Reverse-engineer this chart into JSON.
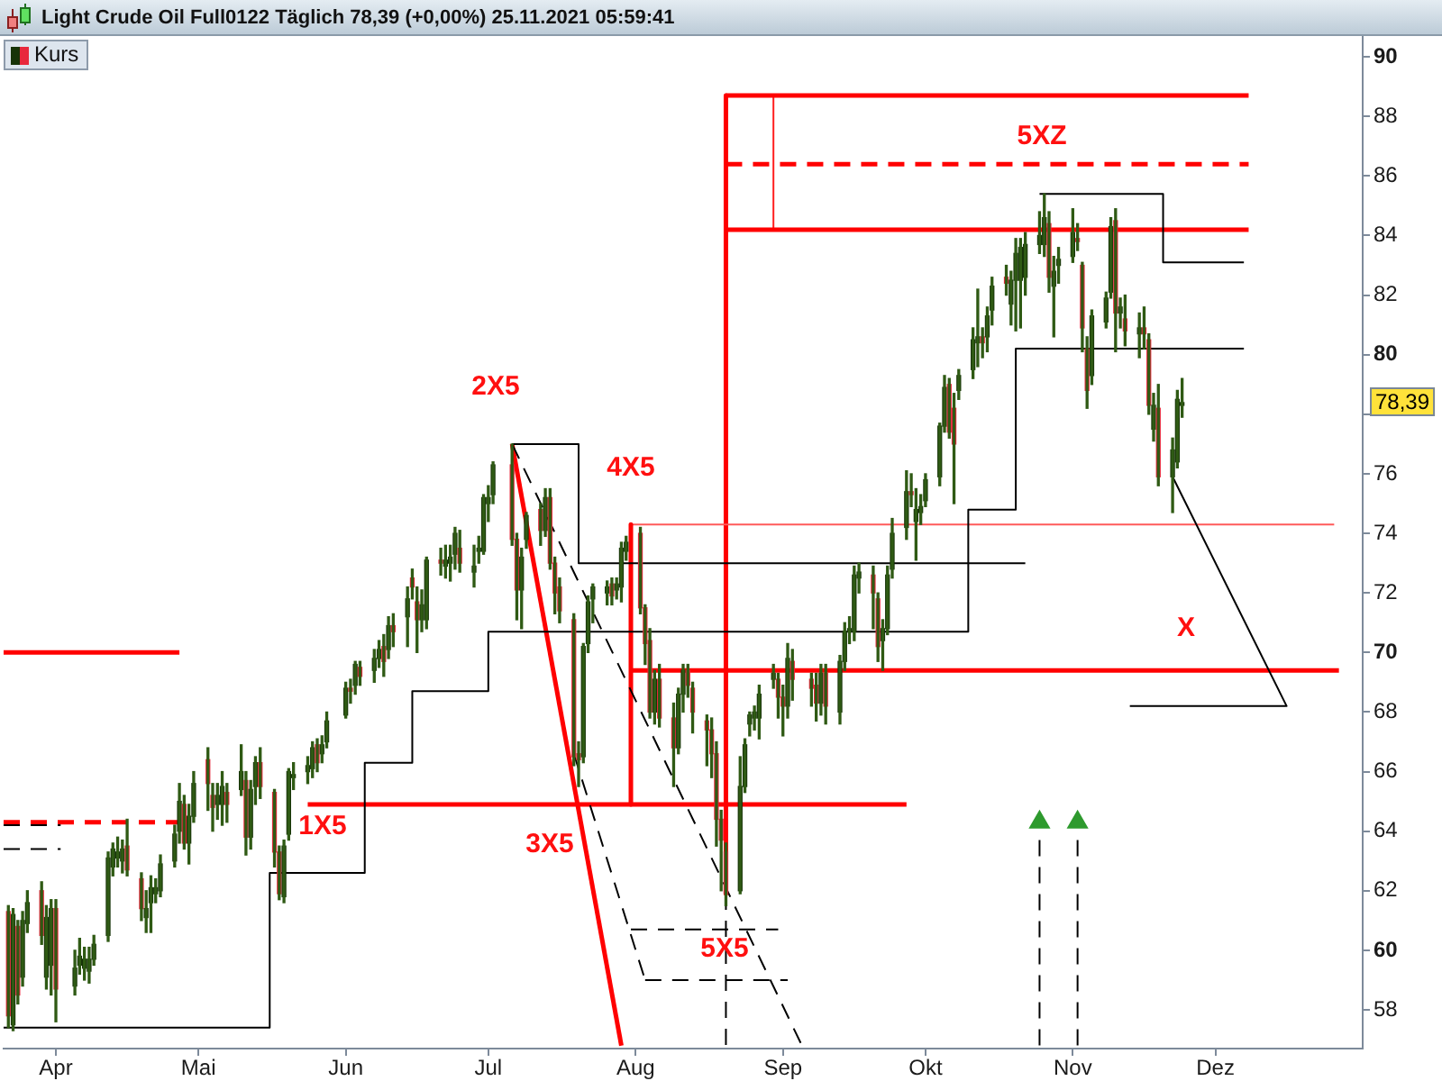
{
  "chart_data": {
    "type": "candlestick",
    "title": "Light Crude Oil Full0122 Täglich 78,39 (+0,00%) 25.11.2021 05:59:41",
    "legend": "top left",
    "xlim": [
      "2021-03-21",
      "2022-01-01"
    ],
    "xticks": [
      {
        "value": "2021-04-01",
        "label": "Apr"
      },
      {
        "value": "2021-05-01",
        "label": "Mai"
      },
      {
        "value": "2021-06-01",
        "label": "Jun"
      },
      {
        "value": "2021-07-01",
        "label": "Jul"
      },
      {
        "value": "2021-08-01",
        "label": "Aug"
      },
      {
        "value": "2021-09-01",
        "label": "Sep"
      },
      {
        "value": "2021-10-01",
        "label": "Okt"
      },
      {
        "value": "2021-11-01",
        "label": "Nov"
      },
      {
        "value": "2021-12-01",
        "label": "Dez"
      }
    ],
    "ylim": [
      56.7,
      90.7
    ],
    "yticks": [
      58,
      60,
      62,
      64,
      66,
      68,
      70,
      72,
      74,
      76,
      {
        "value": 78,
        "label": null
      },
      80,
      82,
      84,
      86,
      88,
      90
    ],
    "annotations": [
      "2X5",
      "4X5",
      "1X5",
      "3X5",
      "5X5",
      "5XZ",
      "X",
      "78,39"
    ],
    "series": [
      {
        "name": "Kurs",
        "color": "#2f5a14",
        "x": [
          "2021-03-22",
          "2021-03-23",
          "2021-03-24",
          "2021-03-25",
          "2021-03-26",
          "2021-03-29",
          "2021-03-30",
          "2021-03-31",
          "2021-04-01",
          "2021-04-05",
          "2021-04-06",
          "2021-04-07",
          "2021-04-08",
          "2021-04-09",
          "2021-04-12",
          "2021-04-13",
          "2021-04-14",
          "2021-04-15",
          "2021-04-16",
          "2021-04-19",
          "2021-04-20",
          "2021-04-21",
          "2021-04-22",
          "2021-04-23",
          "2021-04-26",
          "2021-04-27",
          "2021-04-28",
          "2021-04-29",
          "2021-04-30",
          "2021-05-03",
          "2021-05-04",
          "2021-05-05",
          "2021-05-06",
          "2021-05-07",
          "2021-05-10",
          "2021-05-11",
          "2021-05-12",
          "2021-05-13",
          "2021-05-14",
          "2021-05-17",
          "2021-05-18",
          "2021-05-19",
          "2021-05-20",
          "2021-05-21",
          "2021-05-24",
          "2021-05-25",
          "2021-05-26",
          "2021-05-27",
          "2021-05-28",
          "2021-06-01",
          "2021-06-02",
          "2021-06-03",
          "2021-06-04",
          "2021-06-07",
          "2021-06-08",
          "2021-06-09",
          "2021-06-10",
          "2021-06-11",
          "2021-06-14",
          "2021-06-15",
          "2021-06-16",
          "2021-06-17",
          "2021-06-18",
          "2021-06-21",
          "2021-06-22",
          "2021-06-23",
          "2021-06-24",
          "2021-06-25",
          "2021-06-28",
          "2021-06-29",
          "2021-06-30",
          "2021-07-01",
          "2021-07-02",
          "2021-07-06",
          "2021-07-07",
          "2021-07-08",
          "2021-07-09",
          "2021-07-12",
          "2021-07-13",
          "2021-07-14",
          "2021-07-15",
          "2021-07-16",
          "2021-07-19",
          "2021-07-20",
          "2021-07-21",
          "2021-07-22",
          "2021-07-23",
          "2021-07-26",
          "2021-07-27",
          "2021-07-28",
          "2021-07-29",
          "2021-07-30",
          "2021-08-02",
          "2021-08-03",
          "2021-08-04",
          "2021-08-05",
          "2021-08-06",
          "2021-08-09",
          "2021-08-10",
          "2021-08-11",
          "2021-08-12",
          "2021-08-13",
          "2021-08-16",
          "2021-08-17",
          "2021-08-18",
          "2021-08-19",
          "2021-08-20",
          "2021-08-23",
          "2021-08-24",
          "2021-08-25",
          "2021-08-26",
          "2021-08-27",
          "2021-08-30",
          "2021-08-31",
          "2021-09-01",
          "2021-09-02",
          "2021-09-03",
          "2021-09-07",
          "2021-09-08",
          "2021-09-09",
          "2021-09-10",
          "2021-09-13",
          "2021-09-14",
          "2021-09-15",
          "2021-09-16",
          "2021-09-17",
          "2021-09-20",
          "2021-09-21",
          "2021-09-22",
          "2021-09-23",
          "2021-09-24",
          "2021-09-27",
          "2021-09-28",
          "2021-09-29",
          "2021-09-30",
          "2021-10-01",
          "2021-10-04",
          "2021-10-05",
          "2021-10-06",
          "2021-10-07",
          "2021-10-08",
          "2021-10-11",
          "2021-10-12",
          "2021-10-13",
          "2021-10-14",
          "2021-10-15",
          "2021-10-18",
          "2021-10-19",
          "2021-10-20",
          "2021-10-21",
          "2021-10-22",
          "2021-10-25",
          "2021-10-26",
          "2021-10-27",
          "2021-10-28",
          "2021-10-29",
          "2021-11-01",
          "2021-11-02",
          "2021-11-03",
          "2021-11-04",
          "2021-11-05",
          "2021-11-08",
          "2021-11-09",
          "2021-11-10",
          "2021-11-11",
          "2021-11-12",
          "2021-11-15",
          "2021-11-16",
          "2021-11-17",
          "2021-11-18",
          "2021-11-19",
          "2021-11-22",
          "2021-11-23",
          "2021-11-24"
        ],
        "ohlc": [
          [
            61.3,
            61.5,
            57.4,
            57.8
          ],
          [
            57.5,
            61.4,
            57.3,
            61.2
          ],
          [
            60.8,
            61.0,
            58.2,
            58.5
          ],
          [
            59.1,
            61.3,
            58.8,
            61.0
          ],
          [
            60.9,
            62.0,
            60.6,
            61.6
          ],
          [
            62.0,
            62.3,
            60.2,
            60.5
          ],
          [
            59.1,
            61.5,
            58.7,
            61.1
          ],
          [
            59.5,
            61.7,
            58.5,
            61.4
          ],
          [
            61.4,
            61.7,
            57.6,
            58.7
          ],
          [
            58.8,
            60.0,
            58.5,
            59.4
          ],
          [
            59.5,
            60.4,
            59.2,
            59.8
          ],
          [
            59.4,
            60.1,
            59.0,
            59.7
          ],
          [
            59.3,
            60.1,
            58.9,
            59.7
          ],
          [
            59.7,
            60.5,
            59.5,
            60.2
          ],
          [
            60.5,
            63.3,
            60.3,
            63.1
          ],
          [
            62.8,
            63.6,
            62.5,
            63.4
          ],
          [
            63.1,
            63.8,
            62.8,
            63.3
          ],
          [
            63.0,
            63.7,
            62.6,
            63.4
          ],
          [
            63.5,
            64.4,
            62.5,
            62.7
          ],
          [
            62.4,
            62.6,
            61.0,
            61.4
          ],
          [
            61.1,
            62.0,
            60.6,
            61.4
          ],
          [
            61.6,
            62.5,
            60.6,
            62.1
          ],
          [
            61.9,
            62.4,
            61.6,
            62.1
          ],
          [
            62.0,
            63.2,
            61.8,
            62.9
          ],
          [
            63.0,
            64.2,
            62.8,
            63.9
          ],
          [
            64.0,
            65.6,
            63.6,
            65.0
          ],
          [
            64.9,
            65.2,
            63.4,
            63.6
          ],
          [
            63.6,
            64.9,
            62.9,
            64.5
          ],
          [
            64.5,
            66.0,
            64.3,
            65.6
          ],
          [
            66.4,
            66.8,
            64.7,
            65.6
          ],
          [
            65.2,
            65.6,
            64.0,
            64.8
          ],
          [
            64.9,
            65.6,
            64.4,
            65.2
          ],
          [
            64.9,
            66.0,
            64.2,
            65.5
          ],
          [
            65.3,
            65.6,
            64.3,
            64.9
          ],
          [
            65.4,
            66.9,
            65.2,
            66.0
          ],
          [
            65.7,
            66.0,
            63.2,
            63.8
          ],
          [
            63.8,
            65.7,
            63.4,
            65.4
          ],
          [
            65.5,
            66.5,
            64.9,
            66.3
          ],
          [
            66.3,
            66.8,
            65.1,
            65.5
          ],
          [
            65.3,
            65.4,
            62.8,
            63.3
          ],
          [
            63.3,
            63.5,
            61.7,
            61.9
          ],
          [
            61.8,
            63.7,
            61.6,
            63.5
          ],
          [
            63.9,
            66.1,
            63.7,
            66.0
          ],
          [
            65.8,
            66.3,
            65.4,
            65.9
          ],
          [
            66.0,
            66.5,
            65.6,
            66.2
          ],
          [
            66.1,
            67.0,
            65.8,
            66.8
          ],
          [
            66.9,
            67.1,
            66.0,
            66.3
          ],
          [
            66.6,
            67.2,
            66.3,
            66.9
          ],
          [
            67.0,
            68.0,
            66.8,
            67.7
          ],
          [
            67.9,
            69.0,
            67.8,
            68.8
          ],
          [
            68.8,
            69.1,
            68.3,
            68.7
          ],
          [
            68.9,
            69.7,
            68.6,
            69.6
          ],
          [
            69.5,
            69.7,
            68.9,
            69.2
          ],
          [
            69.4,
            70.1,
            69.0,
            69.8
          ],
          [
            69.8,
            70.4,
            69.5,
            70.1
          ],
          [
            70.2,
            70.6,
            69.2,
            69.7
          ],
          [
            70.1,
            71.2,
            69.8,
            70.9
          ],
          [
            70.9,
            71.3,
            70.2,
            70.7
          ],
          [
            71.2,
            72.2,
            70.2,
            71.8
          ],
          [
            72.5,
            72.8,
            71.8,
            72.2
          ],
          [
            71.7,
            72.2,
            70.0,
            71.1
          ],
          [
            71.1,
            72.1,
            70.7,
            71.6
          ],
          [
            71.1,
            73.2,
            70.8,
            73.1
          ],
          [
            73.1,
            73.5,
            72.6,
            73.0
          ],
          [
            72.9,
            73.6,
            72.5,
            73.1
          ],
          [
            73.0,
            73.6,
            72.4,
            73.2
          ],
          [
            73.3,
            74.2,
            72.8,
            74.0
          ],
          [
            73.5,
            74.1,
            72.7,
            73.0
          ],
          [
            72.7,
            73.6,
            72.2,
            72.9
          ],
          [
            73.4,
            73.9,
            73.0,
            73.5
          ],
          [
            73.4,
            75.3,
            73.3,
            75.2
          ],
          [
            75.0,
            75.6,
            74.4,
            75.2
          ],
          [
            75.3,
            76.4,
            75.0,
            76.3
          ],
          [
            76.3,
            77.0,
            73.6,
            73.8
          ],
          [
            73.8,
            74.0,
            71.1,
            72.1
          ],
          [
            72.1,
            73.5,
            70.8,
            73.2
          ],
          [
            73.8,
            74.7,
            73.5,
            74.6
          ],
          [
            74.8,
            75.0,
            73.6,
            74.1
          ],
          [
            74.1,
            75.5,
            73.9,
            75.2
          ],
          [
            75.2,
            75.5,
            72.8,
            73.0
          ],
          [
            73.0,
            73.2,
            71.3,
            72.0
          ],
          [
            72.2,
            72.5,
            71.0,
            71.4
          ],
          [
            71.1,
            71.3,
            66.2,
            66.5
          ],
          [
            66.6,
            67.0,
            65.5,
            66.4
          ],
          [
            66.5,
            70.3,
            66.3,
            70.2
          ],
          [
            70.3,
            71.9,
            70.0,
            71.7
          ],
          [
            71.8,
            72.3,
            71.0,
            72.2
          ],
          [
            72.0,
            72.4,
            71.6,
            72.2
          ],
          [
            72.3,
            72.5,
            71.6,
            71.9
          ],
          [
            72.1,
            72.5,
            71.8,
            72.3
          ],
          [
            72.2,
            73.7,
            71.7,
            73.5
          ],
          [
            73.4,
            73.9,
            73.1,
            73.7
          ],
          [
            74.0,
            74.2,
            71.3,
            71.5
          ],
          [
            71.5,
            71.6,
            69.6,
            70.3
          ],
          [
            70.4,
            70.8,
            67.8,
            68.0
          ],
          [
            68.0,
            69.4,
            67.6,
            69.1
          ],
          [
            69.1,
            69.6,
            67.5,
            67.8
          ],
          [
            67.8,
            68.3,
            65.5,
            66.8
          ],
          [
            66.8,
            68.8,
            66.6,
            68.6
          ],
          [
            68.6,
            69.6,
            68.0,
            69.4
          ],
          [
            69.4,
            69.6,
            68.5,
            68.9
          ],
          [
            68.8,
            69.0,
            67.3,
            68.0
          ],
          [
            67.7,
            67.9,
            66.2,
            67.4
          ],
          [
            67.4,
            67.8,
            65.8,
            66.6
          ],
          [
            66.6,
            67.0,
            63.5,
            64.4
          ],
          [
            64.4,
            64.7,
            62.0,
            63.7
          ],
          [
            63.3,
            63.6,
            61.5,
            61.9
          ],
          [
            62.0,
            66.5,
            61.9,
            65.5
          ],
          [
            65.5,
            67.1,
            65.3,
            66.9
          ],
          [
            67.6,
            68.0,
            67.2,
            67.9
          ],
          [
            67.8,
            68.2,
            67.4,
            68.0
          ],
          [
            67.8,
            68.9,
            67.1,
            68.6
          ],
          [
            69.1,
            69.6,
            68.8,
            69.3
          ],
          [
            69.1,
            69.3,
            67.8,
            68.5
          ],
          [
            68.5,
            68.9,
            67.2,
            68.2
          ],
          [
            68.2,
            70.3,
            67.8,
            69.8
          ],
          [
            69.7,
            70.1,
            68.4,
            69.1
          ],
          [
            69.1,
            69.3,
            68.2,
            68.8
          ],
          [
            68.9,
            69.3,
            67.7,
            68.3
          ],
          [
            68.3,
            69.6,
            67.9,
            69.3
          ],
          [
            69.3,
            69.6,
            67.6,
            68.2
          ],
          [
            68.0,
            69.9,
            67.6,
            69.7
          ],
          [
            69.7,
            71.0,
            69.4,
            70.7
          ],
          [
            70.7,
            71.2,
            70.3,
            70.8
          ],
          [
            70.7,
            72.9,
            70.4,
            72.6
          ],
          [
            72.5,
            73.0,
            72.0,
            72.7
          ],
          [
            72.6,
            72.9,
            70.8,
            72.0
          ],
          [
            71.8,
            72.0,
            69.7,
            70.2
          ],
          [
            70.4,
            71.1,
            69.4,
            70.8
          ],
          [
            70.8,
            72.9,
            70.6,
            72.6
          ],
          [
            72.8,
            74.5,
            72.5,
            74.0
          ],
          [
            74.2,
            76.1,
            73.8,
            75.4
          ],
          [
            75.4,
            76.0,
            74.9,
            75.3
          ],
          [
            74.4,
            75.5,
            73.1,
            74.8
          ],
          [
            74.7,
            75.3,
            74.3,
            74.9
          ],
          [
            75.1,
            76.0,
            74.9,
            75.8
          ],
          [
            75.9,
            77.7,
            75.6,
            77.6
          ],
          [
            77.6,
            79.3,
            77.4,
            78.9
          ],
          [
            79.0,
            79.2,
            77.2,
            77.4
          ],
          [
            78.2,
            78.7,
            75.0,
            77.0
          ],
          [
            78.8,
            79.5,
            78.5,
            79.3
          ],
          [
            79.5,
            80.9,
            79.2,
            80.5
          ],
          [
            80.4,
            82.2,
            79.6,
            80.6
          ],
          [
            80.6,
            80.9,
            79.9,
            80.4
          ],
          [
            80.6,
            81.6,
            80.1,
            81.3
          ],
          [
            81.5,
            82.6,
            81.0,
            82.3
          ],
          [
            82.6,
            83.0,
            82.0,
            82.4
          ],
          [
            81.7,
            82.8,
            81.0,
            82.5
          ],
          [
            82.5,
            83.9,
            80.8,
            83.4
          ],
          [
            82.5,
            83.9,
            80.9,
            83.6
          ],
          [
            82.6,
            84.1,
            82.0,
            83.7
          ],
          [
            83.7,
            84.8,
            83.4,
            84.0
          ],
          [
            83.7,
            85.4,
            83.3,
            84.6
          ],
          [
            84.4,
            84.8,
            82.1,
            82.6
          ],
          [
            82.3,
            83.3,
            80.6,
            82.8
          ],
          [
            83.0,
            83.6,
            82.4,
            83.2
          ],
          [
            83.3,
            84.9,
            83.1,
            84.1
          ],
          [
            83.9,
            84.4,
            83.5,
            83.8
          ],
          [
            83.0,
            83.1,
            80.1,
            80.9
          ],
          [
            80.2,
            80.6,
            78.2,
            78.8
          ],
          [
            79.3,
            81.5,
            79.0,
            81.3
          ],
          [
            81.1,
            82.1,
            80.9,
            81.9
          ],
          [
            82.1,
            84.6,
            81.9,
            84.3
          ],
          [
            84.5,
            84.9,
            80.1,
            81.4
          ],
          [
            81.4,
            81.9,
            80.9,
            81.6
          ],
          [
            81.2,
            82.0,
            80.3,
            80.8
          ],
          [
            80.7,
            81.4,
            79.9,
            80.9
          ],
          [
            80.9,
            81.6,
            80.2,
            80.7
          ],
          [
            80.5,
            80.7,
            78.0,
            78.3
          ],
          [
            77.5,
            78.7,
            77.1,
            78.3
          ],
          [
            78.2,
            79.0,
            75.6,
            75.9
          ],
          [
            75.9,
            77.2,
            74.7,
            76.8
          ],
          [
            76.4,
            78.8,
            76.2,
            78.5
          ],
          [
            78.3,
            79.2,
            77.9,
            78.39
          ]
        ],
        "colors": [
          "#e8283c",
          "#173408",
          "#e8283c",
          "#173408",
          "#173408",
          "#e8283c",
          "#173408",
          "#173408",
          "#e8283c",
          "#173408",
          "#173408",
          "#173408",
          "#173408",
          "#173408",
          "#173408",
          "#173408",
          "#173408",
          "#173408",
          "#e8283c",
          "#e8283c",
          "#173408",
          "#173408",
          "#173408",
          "#173408",
          "#173408",
          "#173408",
          "#e8283c",
          "#173408",
          "#173408",
          "#e8283c",
          "#e8283c",
          "#173408",
          "#173408",
          "#e8283c",
          "#173408",
          "#e8283c",
          "#173408",
          "#173408",
          "#e8283c",
          "#e8283c",
          "#e8283c",
          "#173408",
          "#173408",
          "#173408",
          "#173408",
          "#173408",
          "#e8283c",
          "#173408",
          "#173408",
          "#173408",
          "#e8283c",
          "#173408",
          "#e8283c",
          "#173408",
          "#173408",
          "#e8283c",
          "#173408",
          "#e8283c",
          "#173408",
          "#e8283c",
          "#e8283c",
          "#173408",
          "#173408",
          "#e8283c",
          "#173408",
          "#173408",
          "#173408",
          "#e8283c",
          "#173408",
          "#173408",
          "#173408",
          "#173408",
          "#173408",
          "#e8283c",
          "#e8283c",
          "#173408",
          "#173408",
          "#e8283c",
          "#173408",
          "#e8283c",
          "#e8283c",
          "#e8283c",
          "#e8283c",
          "#e8283c",
          "#173408",
          "#173408",
          "#173408",
          "#173408",
          "#e8283c",
          "#173408",
          "#173408",
          "#173408",
          "#e8283c",
          "#e8283c",
          "#e8283c",
          "#173408",
          "#e8283c",
          "#e8283c",
          "#173408",
          "#173408",
          "#e8283c",
          "#e8283c",
          "#e8283c",
          "#e8283c",
          "#e8283c",
          "#e8283c",
          "#e8283c",
          "#173408",
          "#173408",
          "#173408",
          "#173408",
          "#173408",
          "#173408",
          "#e8283c",
          "#e8283c",
          "#173408",
          "#e8283c",
          "#e8283c",
          "#e8283c",
          "#173408",
          "#e8283c",
          "#173408",
          "#173408",
          "#173408",
          "#173408",
          "#173408",
          "#e8283c",
          "#e8283c",
          "#173408",
          "#173408",
          "#173408",
          "#173408",
          "#e8283c",
          "#173408",
          "#173408",
          "#173408",
          "#173408",
          "#173408",
          "#e8283c",
          "#e8283c",
          "#173408",
          "#173408",
          "#173408",
          "#e8283c",
          "#173408",
          "#173408",
          "#e8283c",
          "#173408",
          "#173408",
          "#173408",
          "#173408",
          "#173408",
          "#173408",
          "#e8283c",
          "#173408",
          "#173408",
          "#173408",
          "#e8283c",
          "#e8283c",
          "#e8283c",
          "#173408",
          "#173408",
          "#173408",
          "#e8283c",
          "#173408",
          "#e8283c",
          "#173408",
          "#e8283c",
          "#e8283c",
          "#173408",
          "#e8283c",
          "#173408",
          "#173408",
          "#173408"
        ]
      },
      {
        "type": "step",
        "color": "#000000",
        "x": [
          "2021-03-21",
          "2021-05-16",
          "2021-06-05",
          "2021-06-15",
          "2021-07-01",
          "2021-10-10",
          "2021-10-20",
          "2021-12-07"
        ],
        "values": [
          57.4,
          62.6,
          66.3,
          68.7,
          70.7,
          74.8,
          80.2,
          80.2
        ]
      },
      {
        "type": "step",
        "color": "#000000",
        "x": [
          "2021-07-06",
          "2021-07-20",
          "2021-10-22"
        ],
        "values": [
          77.0,
          73.0,
          73.0
        ]
      },
      {
        "type": "step",
        "color": "#000000",
        "x": [
          "2021-10-25",
          "2021-11-20",
          "2021-12-07"
        ],
        "values": [
          85.4,
          83.1,
          83.1
        ]
      },
      {
        "type": "line",
        "color": "#000000",
        "x": [
          "2021-11-13",
          "2021-12-16",
          "2021-11-22"
        ],
        "values": [
          68.2,
          68.2,
          75.9
        ]
      },
      {
        "type": "line",
        "color": "#000000",
        "line_style": "dashed",
        "x": [
          "2021-07-06",
          "2021-09-05"
        ],
        "values": [
          77.0,
          56.8
        ]
      },
      {
        "type": "line",
        "color": "#000000",
        "line_style": "dashed",
        "x": [
          "2021-07-19",
          "2021-08-03"
        ],
        "values": [
          66.6,
          59.0
        ]
      },
      {
        "type": "line",
        "color": "#000000",
        "line_style": "dashed",
        "x": [
          "2021-07-31",
          "2021-08-31"
        ],
        "values": [
          60.7,
          60.7
        ]
      },
      {
        "type": "line",
        "color": "#000000",
        "line_style": "dashed",
        "x": [
          "2021-08-03",
          "2021-09-02"
        ],
        "values": [
          59.0,
          59.0
        ]
      },
      {
        "type": "line",
        "color": "#000000",
        "line_style": "dashed",
        "x": [
          "2021-08-20",
          "2021-08-20"
        ],
        "values": [
          61.9,
          56.8
        ]
      },
      {
        "type": "line",
        "color": "#000000",
        "line_style": "dashed",
        "x": [
          "2021-10-25",
          "2021-10-25"
        ],
        "values": [
          63.7,
          56.8
        ]
      },
      {
        "type": "line",
        "color": "#000000",
        "line_style": "dashed",
        "x": [
          "2021-11-02",
          "2021-11-02"
        ],
        "values": [
          63.7,
          56.8
        ]
      },
      {
        "type": "line",
        "color": "#000000",
        "line_style": "dashed",
        "x": [
          "2021-03-21",
          "2021-04-02"
        ],
        "values": [
          64.2,
          64.2
        ]
      },
      {
        "type": "line",
        "color": "#000000",
        "line_style": "dashed",
        "x": [
          "2021-03-21",
          "2021-04-02"
        ],
        "values": [
          63.4,
          63.4
        ]
      },
      {
        "type": "line",
        "color": "#ff0000",
        "x": [
          "2021-03-21",
          "2021-04-27"
        ],
        "values": [
          70.0,
          70.0
        ]
      },
      {
        "type": "line",
        "color": "#ff0000",
        "line_style": "dashed",
        "x": [
          "2021-03-21",
          "2021-04-27"
        ],
        "values": [
          64.3,
          64.3
        ]
      },
      {
        "type": "line",
        "color": "#ff0000",
        "x": [
          "2021-05-24",
          "2021-09-27"
        ],
        "values": [
          64.9,
          64.9
        ]
      },
      {
        "type": "line",
        "color": "#ff0000",
        "x": [
          "2021-07-31",
          "2021-07-31"
        ],
        "values": [
          74.3,
          64.9
        ]
      },
      {
        "type": "line",
        "color": "#ff5a5a",
        "x": [
          "2021-07-31",
          "2021-12-26"
        ],
        "values": [
          74.3,
          74.3
        ]
      },
      {
        "type": "line",
        "color": "#ff0000",
        "x": [
          "2021-07-31",
          "2021-12-27"
        ],
        "values": [
          69.4,
          69.4
        ]
      },
      {
        "type": "line",
        "color": "#ff0000",
        "x": [
          "2021-08-20",
          "2021-08-20"
        ],
        "values": [
          88.7,
          61.9
        ]
      },
      {
        "type": "line",
        "color": "#ff0000",
        "x": [
          "2021-08-20",
          "2021-12-08"
        ],
        "values": [
          88.7,
          88.7
        ]
      },
      {
        "type": "line",
        "color": "#ff0000",
        "x": [
          "2021-08-20",
          "2021-12-08"
        ],
        "values": [
          84.2,
          84.2
        ]
      },
      {
        "type": "line",
        "color": "#ff0000",
        "line_style": "dashed",
        "x": [
          "2021-08-20",
          "2021-12-08"
        ],
        "values": [
          86.4,
          86.4
        ]
      },
      {
        "type": "line",
        "color": "#ff2020",
        "x": [
          "2021-08-30",
          "2021-08-30"
        ],
        "values": [
          88.7,
          84.2
        ]
      },
      {
        "type": "line",
        "color": "#ff0000",
        "x": [
          "2021-07-06",
          "2021-07-29"
        ],
        "values": [
          77.0,
          56.8
        ]
      },
      {
        "type": "scatter",
        "color": "#2e9a2e",
        "marker": "triangle",
        "x": [
          "2021-10-25",
          "2021-11-02"
        ],
        "values": [
          64.3,
          64.3
        ]
      }
    ]
  }
}
